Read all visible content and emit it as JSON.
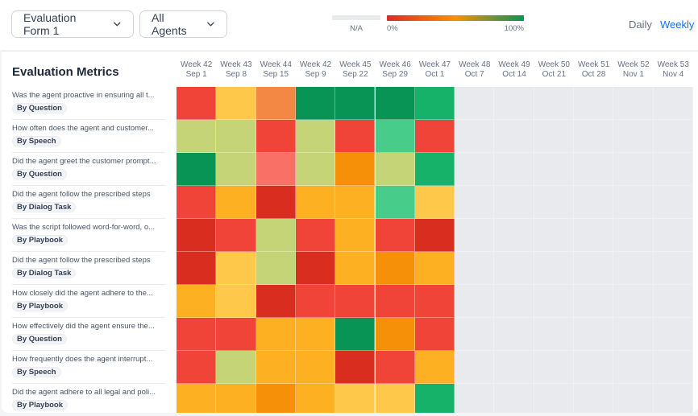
{
  "toolbar": {
    "form_select": "Evaluation Form 1",
    "agent_select": "All Agents",
    "legend": {
      "na_label": "N/A",
      "min_label": "0%",
      "max_label": "100%",
      "na_color": "#e9eaee",
      "gradient": [
        "#d92d20",
        "#f79009",
        "#079455"
      ]
    },
    "periods": {
      "daily": "Daily",
      "weekly": "Weekly",
      "active": "weekly",
      "active_color": "#1570ef"
    }
  },
  "card": {
    "title": "Evaluation Metrics"
  },
  "chart_data": {
    "type": "heatmap",
    "title": "Evaluation Metrics",
    "columns": [
      {
        "week": "Week 42",
        "date": "Sep 1"
      },
      {
        "week": "Week 43",
        "date": "Sep 8"
      },
      {
        "week": "Week 44",
        "date": "Sep 15"
      },
      {
        "week": "Week 42",
        "date": "Sep 9"
      },
      {
        "week": "Week 45",
        "date": "Sep 22"
      },
      {
        "week": "Week 46",
        "date": "Sep 29"
      },
      {
        "week": "Week 47",
        "date": "Oct 1"
      },
      {
        "week": "Week 48",
        "date": "Oct 7"
      },
      {
        "week": "Week 49",
        "date": "Oct 14"
      },
      {
        "week": "Week 50",
        "date": "Oct 21"
      },
      {
        "week": "Week 51",
        "date": "Oct 28"
      },
      {
        "week": "Week 52",
        "date": "Nov 1"
      },
      {
        "week": "Week 53",
        "date": "Nov 4"
      }
    ],
    "rows": [
      {
        "question": "Was the agent proactive in ensuring all t...",
        "tag": "By Question",
        "colors": [
          "#f04438",
          "#fec84b",
          "#f38744",
          "#079455",
          "#079455",
          "#079455",
          "#17b26a",
          null,
          null,
          null,
          null,
          null,
          null
        ]
      },
      {
        "question": "How often does the agent and customer...",
        "tag": "By Speech",
        "colors": [
          "#c4d476",
          "#c4d476",
          "#f04438",
          "#c4d476",
          "#f04438",
          "#47cd89",
          "#f04438",
          null,
          null,
          null,
          null,
          null,
          null
        ]
      },
      {
        "question": "Did the agent greet the customer prompt...",
        "tag": "By Question",
        "colors": [
          "#079455",
          "#c4d476",
          "#f97066",
          "#c4d476",
          "#f79009",
          "#c4d476",
          "#17b26a",
          null,
          null,
          null,
          null,
          null,
          null
        ]
      },
      {
        "question": "Did the agent follow the prescribed steps",
        "tag": "By Dialog Task",
        "colors": [
          "#f04438",
          "#fdb022",
          "#d92d20",
          "#fdb022",
          "#fdb022",
          "#47cd89",
          "#fec84b",
          null,
          null,
          null,
          null,
          null,
          null
        ]
      },
      {
        "question": "Was the script followed word-for-word, o...",
        "tag": "By Playbook",
        "colors": [
          "#d92d20",
          "#f04438",
          "#c4d476",
          "#f04438",
          "#fdb022",
          "#f04438",
          "#d92d20",
          null,
          null,
          null,
          null,
          null,
          null
        ]
      },
      {
        "question": "Did the agent follow the prescribed steps",
        "tag": "By Dialog Task",
        "colors": [
          "#d92d20",
          "#fec84b",
          "#c4d476",
          "#d92d20",
          "#fdb022",
          "#f79009",
          "#fdb022",
          null,
          null,
          null,
          null,
          null,
          null
        ]
      },
      {
        "question": "How closely did the agent adhere to the...",
        "tag": "By Playbook",
        "colors": [
          "#fdb022",
          "#fec84b",
          "#d92d20",
          "#f04438",
          "#f04438",
          "#f04438",
          "#f04438",
          null,
          null,
          null,
          null,
          null,
          null
        ]
      },
      {
        "question": "How effectively did the agent ensure the...",
        "tag": "By Question",
        "colors": [
          "#f04438",
          "#f04438",
          "#fdb022",
          "#fdb022",
          "#079455",
          "#f79009",
          "#f04438",
          null,
          null,
          null,
          null,
          null,
          null
        ]
      },
      {
        "question": "How frequently does the agent interrupt...",
        "tag": "By Speech",
        "colors": [
          "#f04438",
          "#c4d476",
          "#fdb022",
          "#fdb022",
          "#d92d20",
          "#f04438",
          "#fdb022",
          null,
          null,
          null,
          null,
          null,
          null
        ]
      },
      {
        "question": "Did the agent adhere to all legal and poli...",
        "tag": "By Playbook",
        "colors": [
          "#fdb022",
          "#fdb022",
          "#f79009",
          "#fdb022",
          "#fec84b",
          "#fec84b",
          "#17b26a",
          null,
          null,
          null,
          null,
          null,
          null
        ]
      }
    ],
    "na_color": "#e9eaee"
  }
}
